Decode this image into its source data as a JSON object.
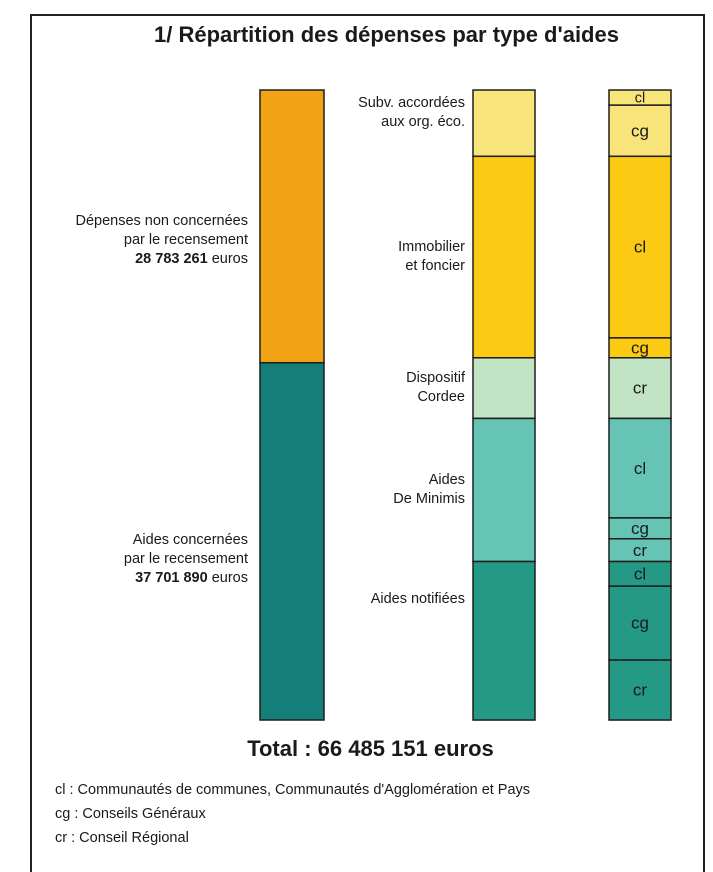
{
  "title": "1/ Répartition des dépenses par type d'aides",
  "total": "Total : 66 485 151 euros",
  "legend": [
    "cl : Communautés de communes, Communautés d'Agglomération et Pays",
    "cg : Conseils Généraux",
    "cr : Conseil Régional"
  ],
  "chart_data": {
    "type": "bar",
    "title": "1/ Répartition des dépenses par type d'aides",
    "unit": "euros",
    "total_value": 66485151,
    "columns": [
      {
        "name": "",
        "segments": [
          {
            "label_lines": [
              "Dépenses non concernées",
              "par le recensement"
            ],
            "value_text": "28 783 261",
            "unit_text": " euros",
            "value": 28783261,
            "color": "#f0a314"
          },
          {
            "label_lines": [
              "Aides concernées",
              "par le recensement"
            ],
            "value_text": "37 701 890",
            "unit_text": " euros",
            "value": 37701890,
            "color": "#147f78"
          }
        ]
      },
      {
        "name": "",
        "segments": [
          {
            "label_lines": [
              "Subv. accordées",
              "aux org. éco."
            ],
            "value": 7000000,
            "color": "#f9e47c"
          },
          {
            "label_lines": [
              "Immobilier",
              "et foncier"
            ],
            "value": 21260000,
            "color": "#fcc913"
          },
          {
            "label_lines": [
              "Dispositif",
              "Cordee"
            ],
            "value": 6400000,
            "color": "#c1e4c4"
          },
          {
            "label_lines": [
              "Aides",
              "De Minimis"
            ],
            "value": 15100000,
            "color": "#66c4b5"
          },
          {
            "label_lines": [
              "Aides notifiées"
            ],
            "value": 16730000,
            "color": "#249a86"
          }
        ]
      },
      {
        "name": "",
        "segments": [
          {
            "code": "cl",
            "value": 1600000,
            "color": "#f9e47c"
          },
          {
            "code": "cg",
            "value": 5400000,
            "color": "#f9e47c"
          },
          {
            "code": "cl",
            "value": 19160000,
            "color": "#fcc913"
          },
          {
            "code": "cg",
            "value": 2100000,
            "color": "#fcc913"
          },
          {
            "code": "cr",
            "value": 6400000,
            "color": "#c1e4c4"
          },
          {
            "code": "cl",
            "value": 10500000,
            "color": "#66c4b5"
          },
          {
            "code": "cg",
            "value": 2200000,
            "color": "#66c4b5"
          },
          {
            "code": "cr",
            "value": 2400000,
            "color": "#66c4b5"
          },
          {
            "code": "cl",
            "value": 2600000,
            "color": "#249a86"
          },
          {
            "code": "cg",
            "value": 7800000,
            "color": "#249a86"
          },
          {
            "code": "cr",
            "value": 6330000,
            "color": "#249a86"
          }
        ]
      }
    ]
  }
}
